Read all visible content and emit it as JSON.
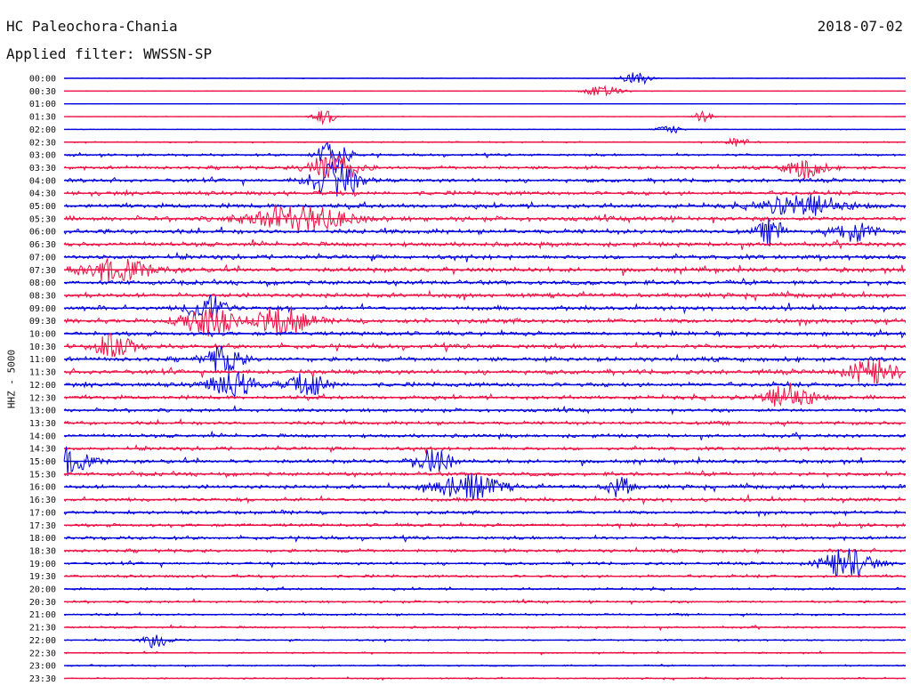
{
  "header": {
    "station": "HC Paleochora-Chania",
    "date": "2018-07-02",
    "filter": "Applied filter: WWSSN-SP"
  },
  "colors": {
    "odd_trace": "#0000dd",
    "even_trace": "#ee1144",
    "text": "#111111",
    "background": "#ffffff"
  },
  "chart_data": {
    "type": "line",
    "title": "HC Paleochora-Chania",
    "subtitle": "Applied filter: WWSSN-SP",
    "ylabel": "HHZ - 5000",
    "xlabel": "",
    "grid": false,
    "legend": "none",
    "row_labels": [
      "00:00",
      "00:30",
      "01:00",
      "01:30",
      "02:00",
      "02:30",
      "03:00",
      "03:30",
      "04:00",
      "04:30",
      "05:00",
      "05:30",
      "06:00",
      "06:30",
      "07:00",
      "07:30",
      "08:00",
      "08:30",
      "09:00",
      "09:30",
      "10:00",
      "10:30",
      "11:00",
      "11:30",
      "12:00",
      "12:30",
      "13:00",
      "13:30",
      "14:00",
      "14:30",
      "15:00",
      "15:30",
      "16:00",
      "16:30",
      "17:00",
      "17:30",
      "18:00",
      "18:30",
      "19:00",
      "19:30",
      "20:00",
      "20:30",
      "21:00",
      "21:30",
      "22:00",
      "22:30",
      "23:00",
      "23:30"
    ],
    "row_colors": [
      "blue",
      "red"
    ],
    "baseline_noise": [
      0.3,
      0.35,
      0.3,
      0.35,
      0.4,
      0.9,
      1.6,
      2.2,
      2.6,
      2.8,
      3.0,
      3.2,
      3.2,
      3.0,
      3.0,
      3.2,
      3.0,
      3.0,
      3.0,
      3.2,
      2.8,
      3.0,
      3.0,
      3.2,
      3.0,
      2.6,
      2.4,
      2.4,
      2.4,
      2.4,
      2.6,
      2.6,
      2.6,
      2.6,
      2.4,
      2.2,
      2.2,
      2.2,
      2.0,
      1.9,
      1.6,
      1.6,
      1.5,
      1.4,
      1.1,
      1.0,
      1.0,
      1.0
    ],
    "events": [
      {
        "row": 0,
        "at": 0.68,
        "amp": 8,
        "width": 0.012
      },
      {
        "row": 1,
        "at": 0.64,
        "amp": 6,
        "width": 0.015
      },
      {
        "row": 3,
        "at": 0.31,
        "amp": 8,
        "width": 0.01
      },
      {
        "row": 3,
        "at": 0.76,
        "amp": 6,
        "width": 0.008
      },
      {
        "row": 4,
        "at": 0.72,
        "amp": 5,
        "width": 0.01
      },
      {
        "row": 5,
        "at": 0.8,
        "amp": 6,
        "width": 0.008
      },
      {
        "row": 6,
        "at": 0.32,
        "amp": 22,
        "width": 0.012
      },
      {
        "row": 7,
        "at": 0.32,
        "amp": 18,
        "width": 0.02
      },
      {
        "row": 7,
        "at": 0.88,
        "amp": 12,
        "width": 0.015
      },
      {
        "row": 8,
        "at": 0.32,
        "amp": 20,
        "width": 0.02
      },
      {
        "row": 10,
        "at": 0.88,
        "amp": 14,
        "width": 0.03
      },
      {
        "row": 11,
        "at": 0.28,
        "amp": 14,
        "width": 0.04
      },
      {
        "row": 12,
        "at": 0.84,
        "amp": 14,
        "width": 0.01
      },
      {
        "row": 12,
        "at": 0.94,
        "amp": 12,
        "width": 0.015
      },
      {
        "row": 15,
        "at": 0.06,
        "amp": 12,
        "width": 0.03
      },
      {
        "row": 18,
        "at": 0.17,
        "amp": 16,
        "width": 0.015
      },
      {
        "row": 19,
        "at": 0.17,
        "amp": 18,
        "width": 0.02
      },
      {
        "row": 19,
        "at": 0.26,
        "amp": 18,
        "width": 0.02
      },
      {
        "row": 21,
        "at": 0.06,
        "amp": 14,
        "width": 0.015
      },
      {
        "row": 22,
        "at": 0.19,
        "amp": 16,
        "width": 0.015
      },
      {
        "row": 23,
        "at": 0.96,
        "amp": 14,
        "width": 0.02
      },
      {
        "row": 24,
        "at": 0.2,
        "amp": 14,
        "width": 0.02
      },
      {
        "row": 24,
        "at": 0.29,
        "amp": 14,
        "width": 0.015
      },
      {
        "row": 25,
        "at": 0.86,
        "amp": 16,
        "width": 0.02
      },
      {
        "row": 30,
        "at": 0.0,
        "amp": 16,
        "width": 0.02
      },
      {
        "row": 30,
        "at": 0.44,
        "amp": 14,
        "width": 0.015
      },
      {
        "row": 32,
        "at": 0.48,
        "amp": 16,
        "width": 0.025
      },
      {
        "row": 32,
        "at": 0.66,
        "amp": 12,
        "width": 0.01
      },
      {
        "row": 38,
        "at": 0.93,
        "amp": 18,
        "width": 0.02
      },
      {
        "row": 44,
        "at": 0.11,
        "amp": 10,
        "width": 0.01
      }
    ]
  }
}
